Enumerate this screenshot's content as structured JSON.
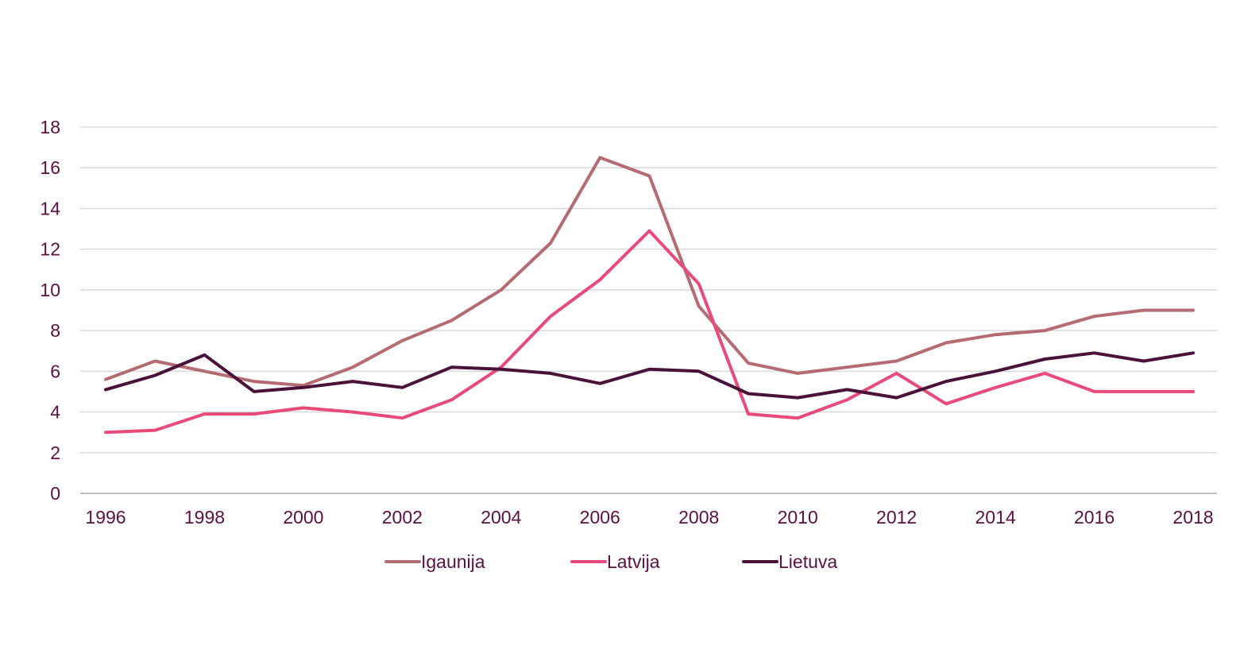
{
  "chart_data": {
    "type": "line",
    "title": "",
    "xlabel": "",
    "ylabel": "",
    "x": [
      1996,
      1997,
      1998,
      1999,
      2000,
      2001,
      2002,
      2003,
      2004,
      2005,
      2006,
      2007,
      2008,
      2009,
      2010,
      2011,
      2012,
      2013,
      2014,
      2015,
      2016,
      2017,
      2018
    ],
    "x_tick_labels": [
      "1996",
      "1998",
      "2000",
      "2002",
      "2004",
      "2006",
      "2008",
      "2010",
      "2012",
      "2014",
      "2016",
      "2018"
    ],
    "ylim": [
      0,
      18
    ],
    "y_ticks": [
      0,
      2,
      4,
      6,
      8,
      10,
      12,
      14,
      16,
      18
    ],
    "y_tick_labels": [
      "0",
      "2",
      "4",
      "6",
      "8",
      "10",
      "12",
      "14",
      "16",
      "18"
    ],
    "grid": true,
    "legend_position": "bottom",
    "series": [
      {
        "name": "Igaunija",
        "color": "#b56b72",
        "values": [
          5.6,
          6.5,
          6.0,
          5.5,
          5.3,
          6.2,
          7.5,
          8.5,
          10.0,
          12.3,
          16.5,
          15.6,
          9.2,
          6.4,
          5.9,
          6.2,
          6.5,
          7.4,
          7.8,
          8.0,
          8.7,
          9.0,
          9.0
        ]
      },
      {
        "name": "Latvija",
        "color": "#e84b79",
        "values": [
          3.0,
          3.1,
          3.9,
          3.9,
          4.2,
          4.0,
          3.7,
          4.6,
          6.2,
          8.7,
          10.5,
          12.9,
          10.3,
          3.9,
          3.7,
          4.6,
          5.9,
          4.4,
          5.2,
          5.9,
          5.0,
          5.0,
          5.0
        ]
      },
      {
        "name": "Lietuva",
        "color": "#4a1238",
        "values": [
          5.1,
          5.8,
          6.8,
          5.0,
          5.2,
          5.5,
          5.2,
          6.2,
          6.1,
          5.9,
          5.4,
          6.1,
          6.0,
          4.9,
          4.7,
          5.1,
          4.7,
          5.5,
          6.0,
          6.6,
          6.9,
          6.5,
          6.9
        ]
      }
    ]
  }
}
